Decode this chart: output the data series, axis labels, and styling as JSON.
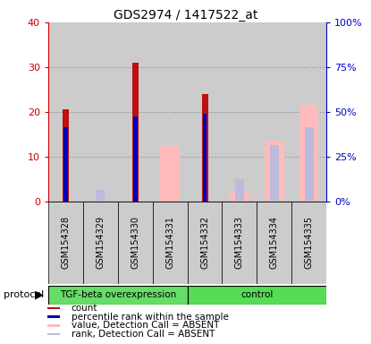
{
  "title": "GDS2974 / 1417522_at",
  "samples": [
    "GSM154328",
    "GSM154329",
    "GSM154330",
    "GSM154331",
    "GSM154332",
    "GSM154333",
    "GSM154334",
    "GSM154335"
  ],
  "count_values": [
    20.5,
    null,
    31.0,
    null,
    24.0,
    null,
    null,
    null
  ],
  "percentile_values": [
    16.5,
    null,
    19.0,
    null,
    19.5,
    null,
    null,
    null
  ],
  "value_absent": [
    null,
    null,
    null,
    12.5,
    null,
    2.0,
    13.5,
    21.5
  ],
  "rank_absent": [
    null,
    2.5,
    null,
    null,
    null,
    5.0,
    12.5,
    16.5
  ],
  "protocol_groups": [
    {
      "label": "TGF-beta overexpression",
      "start": 0,
      "end": 4,
      "color": "#66dd66"
    },
    {
      "label": "control",
      "start": 4,
      "end": 8,
      "color": "#55dd55"
    }
  ],
  "ylim_left": [
    0,
    40
  ],
  "ylim_right": [
    0,
    100
  ],
  "yticks_left": [
    0,
    10,
    20,
    30,
    40
  ],
  "yticks_right": [
    0,
    25,
    50,
    75,
    100
  ],
  "ytick_labels_left": [
    "0",
    "10",
    "20",
    "30",
    "40"
  ],
  "ytick_labels_right": [
    "0%",
    "25%",
    "50%",
    "75%",
    "100%"
  ],
  "color_count": "#bb1111",
  "color_percentile": "#0000bb",
  "color_value_absent": "#ffbbbb",
  "color_rank_absent": "#bbbbdd",
  "bg_color": "#f0f0f0",
  "plot_bg": "#ffffff",
  "left_tick_color": "#cc0000",
  "right_tick_color": "#0000cc",
  "col_bg": "#cccccc",
  "gridline_color": "#888888"
}
